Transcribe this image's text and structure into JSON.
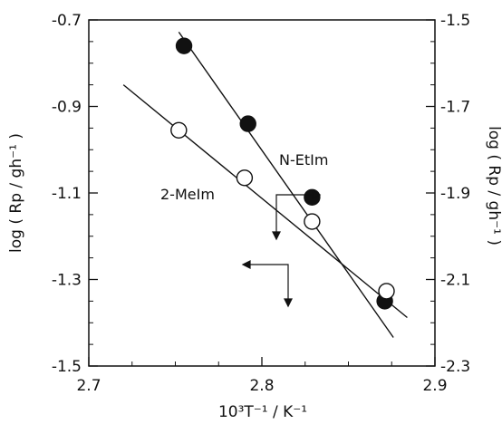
{
  "chart_data": {
    "type": "scatter",
    "title": "",
    "xlabel": "10³T⁻¹ / K⁻¹",
    "ylabel_left": "log ( Rp / gh⁻¹ )",
    "ylabel_right": "log ( Rp / gh⁻¹ )",
    "xlim": [
      2.7,
      2.9
    ],
    "ylim_left": [
      -1.5,
      -0.7
    ],
    "ylim_right": [
      -2.3,
      -1.5
    ],
    "x_ticks": [
      "2.7",
      "2.8",
      "2.9"
    ],
    "y_ticks_left": [
      "-0.7",
      "-0.9",
      "-1.1",
      "-1.3",
      "-1.5"
    ],
    "y_ticks_right": [
      "-1.5",
      "-1.7",
      "-1.9",
      "-2.1",
      "-2.3"
    ],
    "grid": false,
    "series": [
      {
        "name": "N-EtIm",
        "marker": "filled-circle",
        "color": "#111111",
        "axis": "right",
        "x": [
          2.755,
          2.792,
          2.829,
          2.871
        ],
        "y": [
          -1.56,
          -1.74,
          -1.91,
          -2.15
        ],
        "fit": {
          "x": [
            2.752,
            2.876
          ],
          "y": [
            -1.528,
            -2.234
          ]
        }
      },
      {
        "name": "2-MeIm",
        "marker": "open-circle",
        "color": "#111111",
        "axis": "left",
        "x": [
          2.752,
          2.79,
          2.829,
          2.872
        ],
        "y": [
          -0.955,
          -1.065,
          -1.166,
          -1.327
        ],
        "fit": {
          "x": [
            2.72,
            2.884
          ],
          "y": [
            -0.85,
            -1.388
          ]
        }
      }
    ]
  }
}
